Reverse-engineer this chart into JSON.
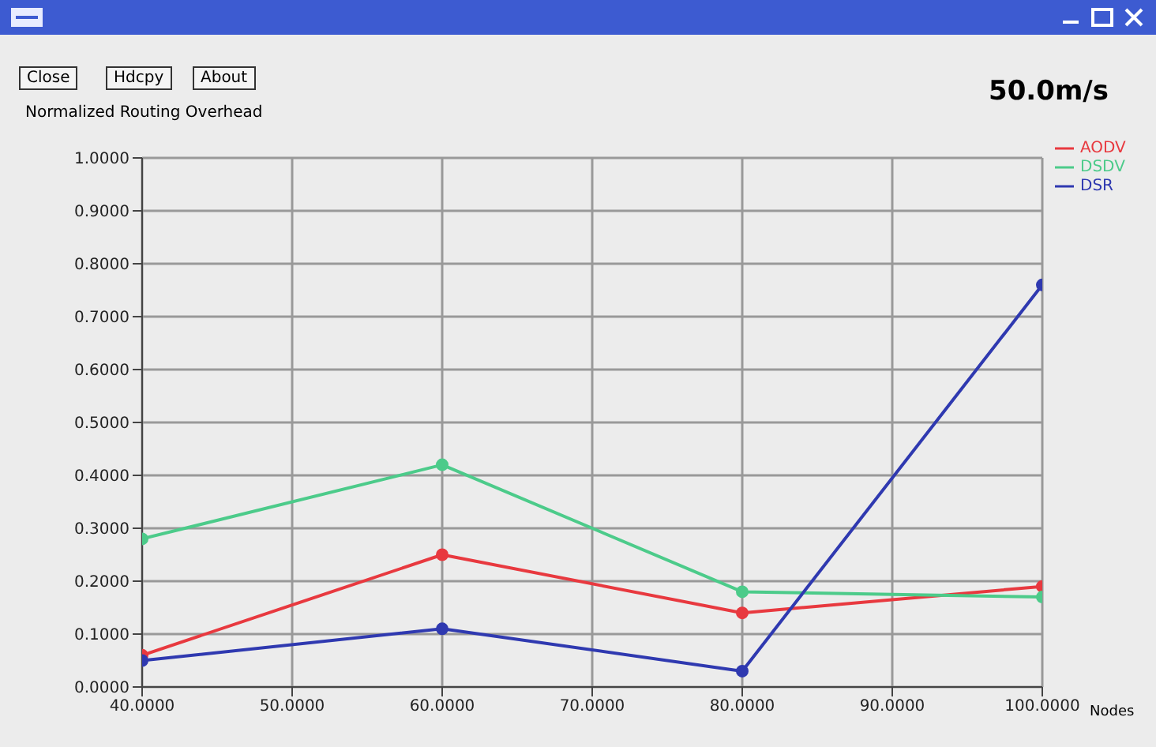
{
  "chart_data": {
    "type": "line",
    "title": "50.0m/s",
    "ylabel": "Normalized Routing Overhead",
    "xlabel": "Nodes",
    "annotations": [
      "Close",
      "Hdcpy",
      "About"
    ],
    "x": [
      40,
      60,
      80,
      100
    ],
    "series": [
      {
        "name": "AODV",
        "color": "#e8393f",
        "values": [
          0.06,
          0.25,
          0.14,
          0.19
        ]
      },
      {
        "name": "DSDV",
        "color": "#4ccb8a",
        "values": [
          0.28,
          0.42,
          0.18,
          0.17
        ]
      },
      {
        "name": "DSR",
        "color": "#2f39b0",
        "values": [
          0.05,
          0.11,
          0.03,
          0.76
        ]
      }
    ],
    "xlim": [
      40,
      100
    ],
    "xticks": [
      {
        "value": 40,
        "label": "40.0000"
      },
      {
        "value": 50,
        "label": "50.0000"
      },
      {
        "value": 60,
        "label": "60.0000"
      },
      {
        "value": 70,
        "label": "70.0000"
      },
      {
        "value": 80,
        "label": "80.0000"
      },
      {
        "value": 90,
        "label": "90.0000"
      },
      {
        "value": 100,
        "label": "100.0000"
      }
    ],
    "ylim": [
      0,
      1
    ],
    "yticks": [
      {
        "value": 0,
        "label": "0.0000"
      },
      {
        "value": 0.1,
        "label": "0.1000"
      },
      {
        "value": 0.2,
        "label": "0.2000"
      },
      {
        "value": 0.3,
        "label": "0.3000"
      },
      {
        "value": 0.4,
        "label": "0.4000"
      },
      {
        "value": 0.5,
        "label": "0.5000"
      },
      {
        "value": 0.6,
        "label": "0.6000"
      },
      {
        "value": 0.7,
        "label": "0.7000"
      },
      {
        "value": 0.8,
        "label": "0.8000"
      },
      {
        "value": 0.9,
        "label": "0.9000"
      },
      {
        "value": 1,
        "label": "1.0000"
      }
    ],
    "grid": true,
    "legend": "top right",
    "marker": "circle",
    "line_style": "solid"
  }
}
